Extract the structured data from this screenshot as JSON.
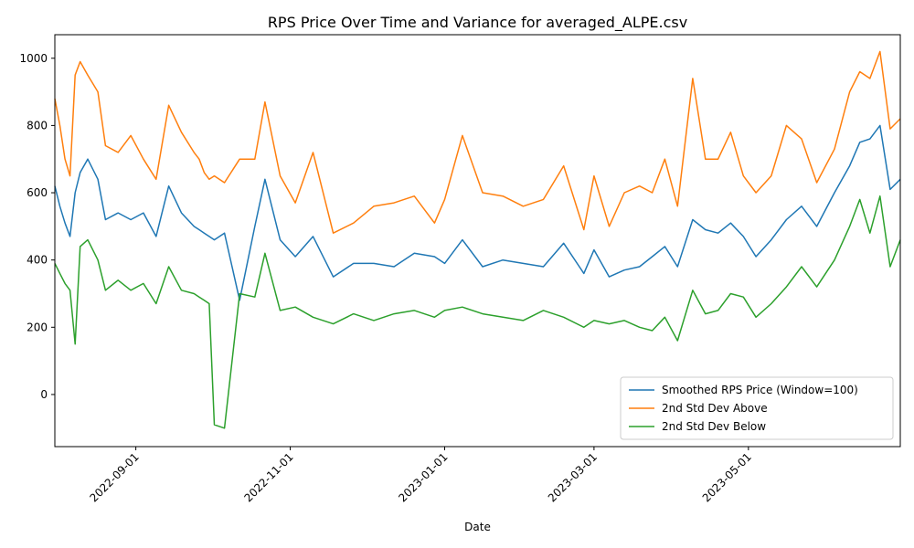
{
  "chart_data": {
    "type": "line",
    "title": "RPS Price Over Time and Variance for averaged_ALPE.csv",
    "xlabel": "Date",
    "ylabel": "",
    "xlim": [
      "2022-07-31",
      "2023-06-30"
    ],
    "ylim": [
      -155,
      1070
    ],
    "x_tick_labels": [
      "2022-09-01",
      "2022-11-01",
      "2023-01-01",
      "2023-03-01",
      "2023-05-01"
    ],
    "x_ticks": [
      "2022-09-01",
      "2022-11-01",
      "2023-01-01",
      "2023-03-01",
      "2023-05-01"
    ],
    "y_ticks": [
      0,
      200,
      400,
      600,
      800,
      1000
    ],
    "grid": false,
    "legend_position": "lower right",
    "x": [
      "2022-07-31",
      "2022-08-02",
      "2022-08-04",
      "2022-08-06",
      "2022-08-08",
      "2022-08-10",
      "2022-08-13",
      "2022-08-17",
      "2022-08-20",
      "2022-08-25",
      "2022-08-30",
      "2022-09-04",
      "2022-09-09",
      "2022-09-14",
      "2022-09-19",
      "2022-09-24",
      "2022-09-26",
      "2022-09-28",
      "2022-09-30",
      "2022-10-02",
      "2022-10-06",
      "2022-10-12",
      "2022-10-18",
      "2022-10-22",
      "2022-10-28",
      "2022-11-03",
      "2022-11-10",
      "2022-11-18",
      "2022-11-26",
      "2022-12-04",
      "2022-12-12",
      "2022-12-20",
      "2022-12-28",
      "2023-01-01",
      "2023-01-08",
      "2023-01-16",
      "2023-01-24",
      "2023-02-01",
      "2023-02-09",
      "2023-02-17",
      "2023-02-25",
      "2023-03-01",
      "2023-03-07",
      "2023-03-13",
      "2023-03-19",
      "2023-03-24",
      "2023-03-29",
      "2023-04-03",
      "2023-04-09",
      "2023-04-14",
      "2023-04-19",
      "2023-04-24",
      "2023-04-29",
      "2023-05-04",
      "2023-05-10",
      "2023-05-16",
      "2023-05-22",
      "2023-05-28",
      "2023-06-04",
      "2023-06-10",
      "2023-06-14",
      "2023-06-18",
      "2023-06-22",
      "2023-06-26",
      "2023-06-30"
    ],
    "series": [
      {
        "name": "Smoothed RPS Price (Window=100)",
        "color": "#1f77b4",
        "values": [
          620,
          560,
          510,
          470,
          600,
          660,
          700,
          640,
          520,
          540,
          520,
          540,
          470,
          620,
          540,
          500,
          490,
          480,
          470,
          460,
          480,
          280,
          500,
          640,
          460,
          410,
          470,
          350,
          390,
          390,
          380,
          420,
          410,
          390,
          460,
          380,
          400,
          390,
          380,
          450,
          360,
          430,
          350,
          370,
          380,
          410,
          440,
          380,
          520,
          490,
          480,
          510,
          470,
          410,
          460,
          520,
          560,
          500,
          600,
          680,
          750,
          760,
          800,
          610,
          640
        ]
      },
      {
        "name": "2nd Std Dev Above",
        "color": "#ff7f0e",
        "values": [
          880,
          800,
          700,
          650,
          950,
          990,
          950,
          900,
          740,
          720,
          770,
          700,
          640,
          860,
          780,
          720,
          700,
          660,
          640,
          650,
          630,
          700,
          700,
          870,
          650,
          570,
          720,
          480,
          510,
          560,
          570,
          590,
          510,
          580,
          770,
          600,
          590,
          560,
          580,
          680,
          490,
          650,
          500,
          600,
          620,
          600,
          700,
          560,
          940,
          700,
          700,
          780,
          650,
          600,
          650,
          800,
          760,
          630,
          730,
          900,
          960,
          940,
          1020,
          790,
          820
        ]
      },
      {
        "name": "2nd Std Dev Below",
        "color": "#2ca02c",
        "values": [
          390,
          360,
          330,
          310,
          150,
          440,
          460,
          400,
          310,
          340,
          310,
          330,
          270,
          380,
          310,
          300,
          290,
          280,
          270,
          -90,
          -100,
          300,
          290,
          420,
          250,
          260,
          230,
          210,
          240,
          220,
          240,
          250,
          230,
          250,
          260,
          240,
          230,
          220,
          250,
          230,
          200,
          220,
          210,
          220,
          200,
          190,
          230,
          160,
          310,
          240,
          250,
          300,
          290,
          230,
          270,
          320,
          380,
          320,
          400,
          500,
          580,
          480,
          590,
          380,
          460
        ]
      }
    ]
  }
}
